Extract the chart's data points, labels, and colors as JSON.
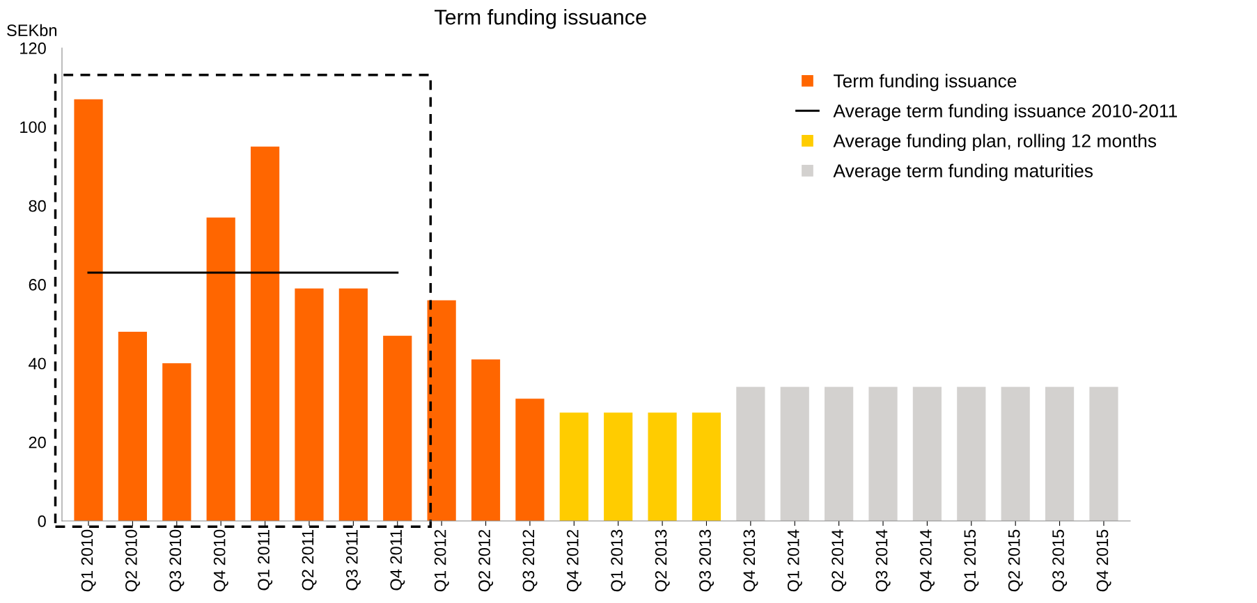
{
  "chart_data": {
    "type": "bar",
    "title": "Term funding issuance",
    "ylabel": "SEKbn",
    "categories": [
      "Q1 2010",
      "Q2 2010",
      "Q3 2010",
      "Q4 2010",
      "Q1 2011",
      "Q2 2011",
      "Q3 2011",
      "Q4 2011",
      "Q1 2012",
      "Q2 2012",
      "Q3 2012",
      "Q4 2012",
      "Q1 2013",
      "Q2 2013",
      "Q3 2013",
      "Q4 2013",
      "Q1 2014",
      "Q2 2014",
      "Q3 2014",
      "Q4 2014",
      "Q1 2015",
      "Q2 2015",
      "Q3 2015",
      "Q4 2015"
    ],
    "series": [
      {
        "name": "Term funding issuance",
        "color": "#ff6600",
        "values": [
          107,
          48,
          40,
          77,
          95,
          59,
          59,
          47,
          56,
          41,
          31,
          null,
          null,
          null,
          null,
          null,
          null,
          null,
          null,
          null,
          null,
          null,
          null,
          null
        ]
      },
      {
        "name": "Average term funding issuance 2010-2011",
        "type": "line",
        "color": "#000000",
        "values": [
          63,
          63,
          63,
          63,
          63,
          63,
          63,
          63,
          null,
          null,
          null,
          null,
          null,
          null,
          null,
          null,
          null,
          null,
          null,
          null,
          null,
          null,
          null,
          null
        ]
      },
      {
        "name": "Average funding plan, rolling 12 months",
        "color": "#ffcc00",
        "values": [
          null,
          null,
          null,
          null,
          null,
          null,
          null,
          null,
          null,
          null,
          null,
          27.5,
          27.5,
          27.5,
          27.5,
          null,
          null,
          null,
          null,
          null,
          null,
          null,
          null,
          null
        ]
      },
      {
        "name": "Average term funding maturities",
        "color": "#d3d1cf",
        "values": [
          null,
          null,
          null,
          null,
          null,
          null,
          null,
          null,
          null,
          null,
          null,
          null,
          null,
          null,
          null,
          34,
          34,
          34,
          34,
          34,
          34,
          34,
          34,
          34
        ]
      }
    ],
    "ylim": [
      0,
      120
    ],
    "yticks": [
      0,
      20,
      40,
      60,
      80,
      100,
      120
    ],
    "grid": false,
    "legend": "top right"
  }
}
